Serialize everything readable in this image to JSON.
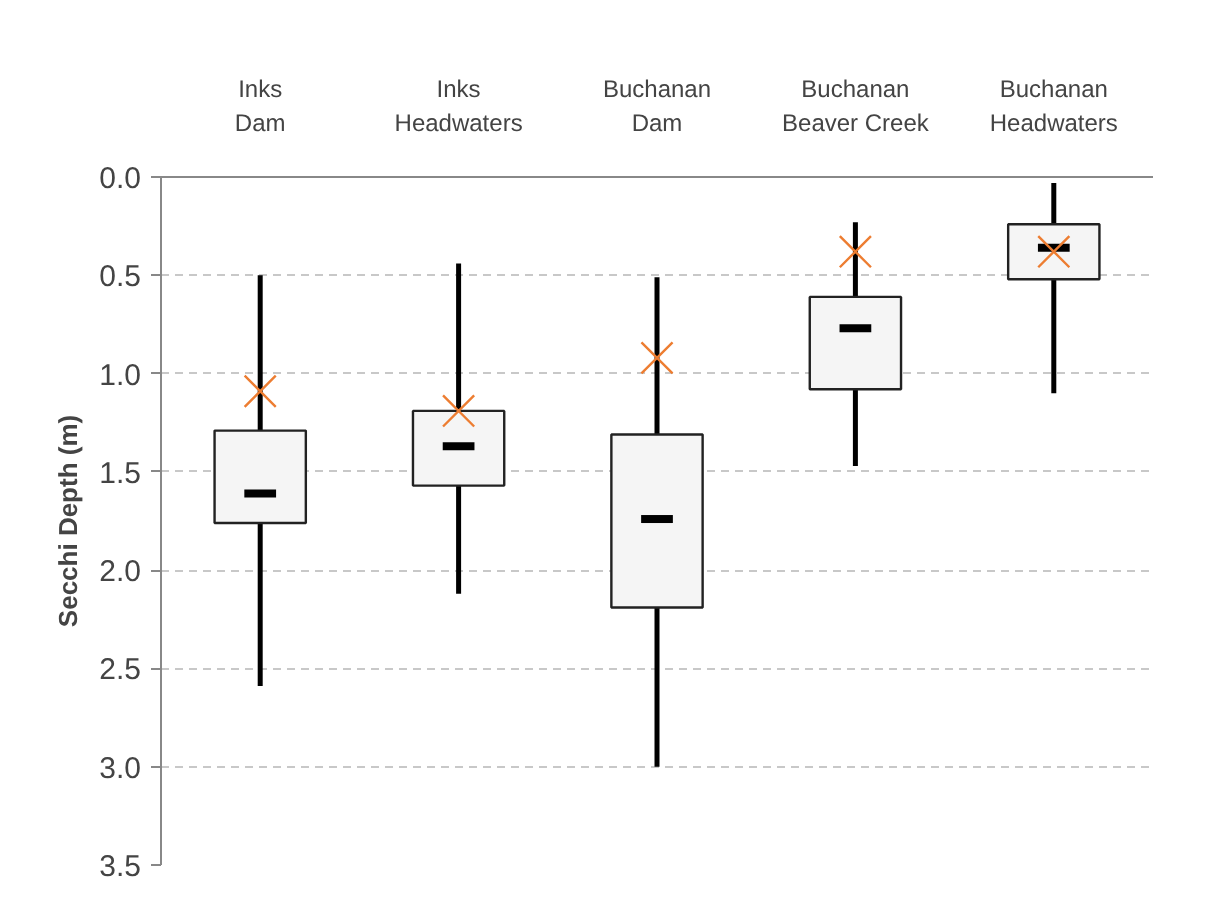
{
  "chart_data": {
    "type": "box",
    "ylabel": "Secchi Depth (m)",
    "categories": [
      "Inks\nDam",
      "Inks\nHeadwaters",
      "Buchanan\nDam",
      "Buchanan\nBeaver Creek",
      "Buchanan\nHeadwaters"
    ],
    "color": "#f5f5f5",
    "marker": "cross",
    "grid": "y",
    "ylim": [
      3.5,
      0.0
    ],
    "yticks": [
      {
        "value": 0.0,
        "label": "0.0"
      },
      {
        "value": 0.5,
        "label": "0.5"
      },
      {
        "value": 1.0,
        "label": "1.0"
      },
      {
        "value": 1.5,
        "label": "1.5"
      },
      {
        "value": 2.0,
        "label": "2.0"
      },
      {
        "value": 2.5,
        "label": "2.5"
      },
      {
        "value": 3.0,
        "label": "3.0"
      },
      {
        "value": 3.5,
        "label": "3.5"
      }
    ],
    "boxes": [
      {
        "low": 2.59,
        "q1": 1.76,
        "median": 1.61,
        "q3": 1.29,
        "high": 0.5,
        "mean": 1.09
      },
      {
        "low": 2.12,
        "q1": 1.57,
        "median": 1.37,
        "q3": 1.19,
        "high": 0.44,
        "mean": 1.19
      },
      {
        "low": 3.0,
        "q1": 2.19,
        "median": 1.74,
        "q3": 1.31,
        "high": 0.51,
        "mean": 0.92
      },
      {
        "low": 1.47,
        "q1": 1.08,
        "median": 0.77,
        "q3": 0.61,
        "high": 0.23,
        "mean": 0.38
      },
      {
        "low": 1.1,
        "q1": 0.52,
        "median": 0.36,
        "q3": 0.24,
        "high": 0.03,
        "mean": 0.38
      }
    ]
  }
}
